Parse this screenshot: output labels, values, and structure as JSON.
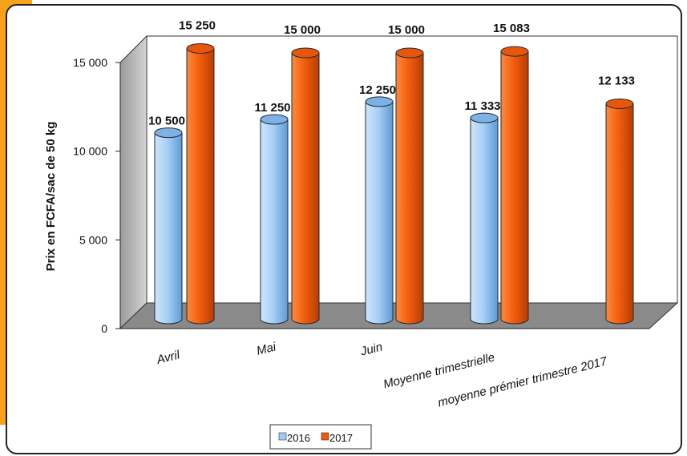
{
  "chart_data": {
    "type": "bar",
    "title": "",
    "ylabel": "Prix en FCFA/sac de 50 kg",
    "xlabel": "",
    "ylim": [
      0,
      15000
    ],
    "y_ticks": [
      0,
      5000,
      10000,
      15000
    ],
    "y_tick_labels": [
      "0",
      "5 000",
      "10 000",
      "15 000"
    ],
    "categories": [
      "Avril",
      "Mai",
      "Juin",
      "Moyenne trimestrielle",
      "moyenne prémier trimestre 2017"
    ],
    "series": [
      {
        "name": "2016",
        "color": "#9fcbf2",
        "values": [
          10500,
          11250,
          12250,
          11333,
          null
        ],
        "labels": [
          "10 500",
          "11 250",
          "12 250",
          "11 333",
          ""
        ]
      },
      {
        "name": "2017",
        "color": "#f05a0a",
        "values": [
          15250,
          15000,
          15000,
          15083,
          12133
        ],
        "labels": [
          "15 250",
          "15 000",
          "15 000",
          "15 083",
          "12 133"
        ]
      }
    ],
    "legend_position": "bottom",
    "grid": false
  }
}
